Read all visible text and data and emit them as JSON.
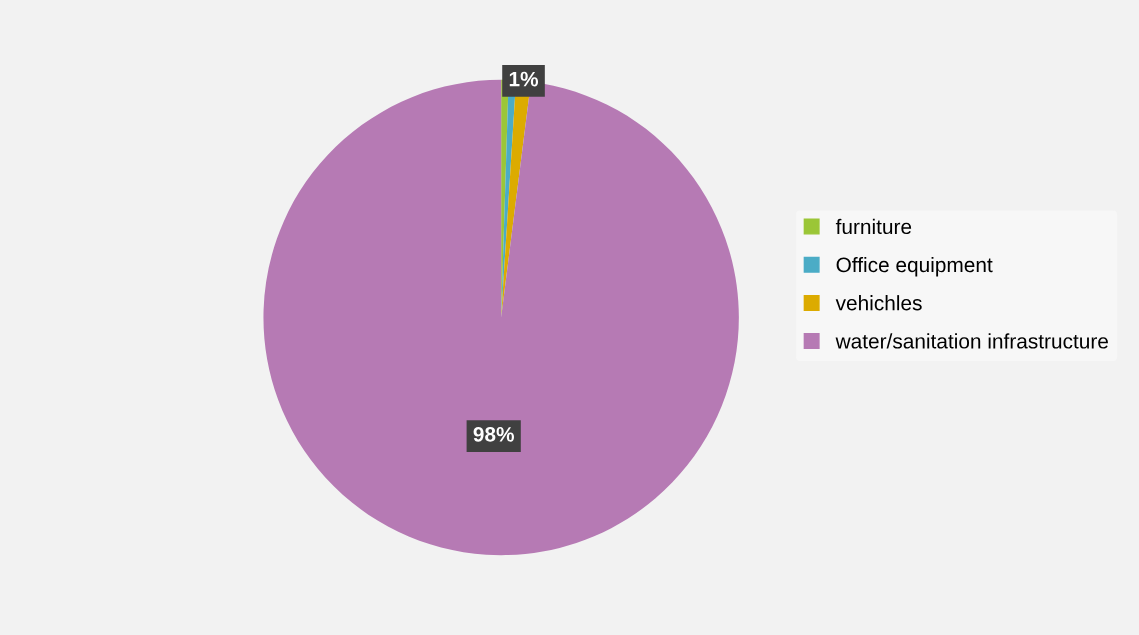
{
  "chart_data": {
    "type": "pie",
    "categories": [
      "furniture",
      "Office equipment",
      "vehichles",
      "water/sanitation infrastructure"
    ],
    "values": [
      0.5,
      0.5,
      1,
      98
    ],
    "colors": [
      "#9bc637",
      "#4bacc6",
      "#dcab00",
      "#b67ab4"
    ],
    "value_labels": [
      null,
      null,
      "1%",
      "98%"
    ],
    "legend": "right"
  }
}
